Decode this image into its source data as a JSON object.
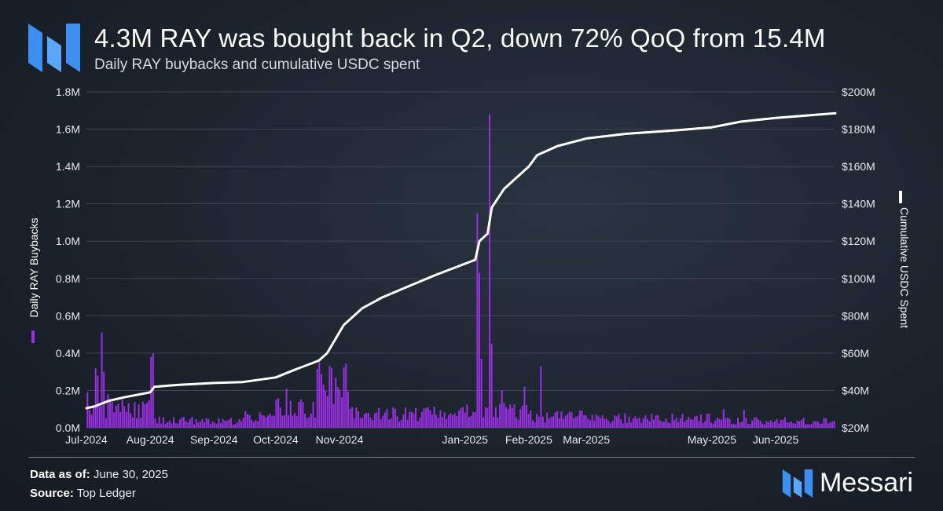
{
  "header": {
    "title": "4.3M RAY was bought back in Q2, down 72% QoQ from 15.4M",
    "subtitle": "Daily RAY buybacks and cumulative USDC spent",
    "logo_icon": "messari-logo-icon"
  },
  "footer": {
    "data_label": "Data as of:",
    "data_value": "June 30, 2025",
    "source_label": "Source:",
    "source_value": "Top Ledger",
    "brand": "Messari"
  },
  "colors": {
    "bars": "#9b2fe6",
    "line": "#ffffff",
    "accent": "#3d8ff2",
    "grid": "#3c4551"
  },
  "chart_data": {
    "type": "bar",
    "title": "4.3M RAY was bought back in Q2, down 72% QoQ from 15.4M",
    "subtitle": "Daily RAY buybacks and cumulative USDC spent",
    "x_axis": {
      "type": "date",
      "range": [
        "2024-07-01",
        "2025-06-30"
      ],
      "tick_dates": [
        "2024-07-01",
        "2024-08-01",
        "2024-09-01",
        "2024-10-01",
        "2024-11-01",
        "2025-01-01",
        "2025-02-01",
        "2025-03-01",
        "2025-05-01",
        "2025-06-01"
      ],
      "tick_labels": [
        "Jul-2024",
        "Aug-2024",
        "Sep-2024",
        "Oct-2024",
        "Nov-2024",
        "Jan-2025",
        "Feb-2025",
        "Mar-2025",
        "May-2025",
        "Jun-2025"
      ]
    },
    "y_left": {
      "label": "Daily RAY Buybacks",
      "range": [
        0,
        1800000
      ],
      "tick_values": [
        0,
        200000,
        400000,
        600000,
        800000,
        1000000,
        1200000,
        1400000,
        1600000,
        1800000
      ],
      "tick_labels": [
        "0.0M",
        "0.2M",
        "0.4M",
        "0.6M",
        "0.8M",
        "1.0M",
        "1.2M",
        "1.4M",
        "1.6M",
        "1.8M"
      ]
    },
    "y_right": {
      "label": "Cumulative USDC Spent",
      "range": [
        20000000,
        200000000
      ],
      "tick_values": [
        20000000,
        40000000,
        60000000,
        80000000,
        100000000,
        120000000,
        140000000,
        160000000,
        180000000,
        200000000
      ],
      "tick_labels": [
        "$20M",
        "$40M",
        "$60M",
        "$80M",
        "$100M",
        "$120M",
        "$140M",
        "$160M",
        "$180M",
        "$200M"
      ]
    },
    "grid": "horizontal",
    "legend": "axis-labels",
    "series": [
      {
        "name": "Daily RAY Buybacks",
        "type": "bar",
        "axis": "left",
        "unit": "RAY",
        "baseline_by_month": [
          {
            "from": "2024-07-01",
            "to": "2024-07-31",
            "value": 110000
          },
          {
            "from": "2024-08-01",
            "to": "2024-08-31",
            "value": 40000
          },
          {
            "from": "2024-09-01",
            "to": "2024-09-14",
            "value": 35000
          },
          {
            "from": "2024-09-15",
            "to": "2024-09-30",
            "value": 65000
          },
          {
            "from": "2024-10-01",
            "to": "2024-10-20",
            "value": 110000
          },
          {
            "from": "2024-10-21",
            "to": "2024-11-05",
            "value": 230000
          },
          {
            "from": "2024-11-06",
            "to": "2024-12-31",
            "value": 75000
          },
          {
            "from": "2025-01-01",
            "to": "2025-01-31",
            "value": 90000
          },
          {
            "from": "2025-02-01",
            "to": "2025-02-28",
            "value": 60000
          },
          {
            "from": "2025-03-01",
            "to": "2025-04-30",
            "value": 50000
          },
          {
            "from": "2025-05-01",
            "to": "2025-06-30",
            "value": 38000
          }
        ],
        "peaks": [
          {
            "date": "2024-07-01",
            "value": 190000
          },
          {
            "date": "2024-07-05",
            "value": 320000
          },
          {
            "date": "2024-07-06",
            "value": 280000
          },
          {
            "date": "2024-07-08",
            "value": 510000
          },
          {
            "date": "2024-07-09",
            "value": 300000
          },
          {
            "date": "2024-07-11",
            "value": 180000
          },
          {
            "date": "2024-08-01",
            "value": 380000
          },
          {
            "date": "2024-08-02",
            "value": 400000
          },
          {
            "date": "2024-10-06",
            "value": 210000
          },
          {
            "date": "2024-10-27",
            "value": 330000
          },
          {
            "date": "2024-10-28",
            "value": 320000
          },
          {
            "date": "2025-01-07",
            "value": 1150000
          },
          {
            "date": "2025-01-08",
            "value": 830000
          },
          {
            "date": "2025-01-09",
            "value": 370000
          },
          {
            "date": "2025-01-13",
            "value": 1680000
          },
          {
            "date": "2025-01-14",
            "value": 450000
          },
          {
            "date": "2025-01-19",
            "value": 200000
          },
          {
            "date": "2025-01-30",
            "value": 220000
          },
          {
            "date": "2025-02-07",
            "value": 330000
          },
          {
            "date": "2025-05-07",
            "value": 100000
          },
          {
            "date": "2025-05-17",
            "value": 95000
          }
        ]
      },
      {
        "name": "Cumulative USDC Spent",
        "type": "line",
        "axis": "right",
        "unit": "USD",
        "points": [
          {
            "date": "2024-07-01",
            "value": 30500000
          },
          {
            "date": "2024-07-05",
            "value": 31500000
          },
          {
            "date": "2024-07-12",
            "value": 34500000
          },
          {
            "date": "2024-07-20",
            "value": 36500000
          },
          {
            "date": "2024-08-01",
            "value": 39000000
          },
          {
            "date": "2024-08-03",
            "value": 42000000
          },
          {
            "date": "2024-08-15",
            "value": 43000000
          },
          {
            "date": "2024-09-01",
            "value": 44000000
          },
          {
            "date": "2024-09-15",
            "value": 44500000
          },
          {
            "date": "2024-10-01",
            "value": 47000000
          },
          {
            "date": "2024-10-10",
            "value": 51000000
          },
          {
            "date": "2024-10-22",
            "value": 56000000
          },
          {
            "date": "2024-10-26",
            "value": 60000000
          },
          {
            "date": "2024-11-03",
            "value": 75000000
          },
          {
            "date": "2024-11-12",
            "value": 84000000
          },
          {
            "date": "2024-11-22",
            "value": 90000000
          },
          {
            "date": "2024-12-05",
            "value": 96000000
          },
          {
            "date": "2024-12-18",
            "value": 102000000
          },
          {
            "date": "2025-01-06",
            "value": 110000000
          },
          {
            "date": "2025-01-08",
            "value": 120000000
          },
          {
            "date": "2025-01-12",
            "value": 124000000
          },
          {
            "date": "2025-01-14",
            "value": 138000000
          },
          {
            "date": "2025-01-20",
            "value": 148000000
          },
          {
            "date": "2025-02-01",
            "value": 160000000
          },
          {
            "date": "2025-02-05",
            "value": 166000000
          },
          {
            "date": "2025-02-15",
            "value": 171000000
          },
          {
            "date": "2025-03-01",
            "value": 175000000
          },
          {
            "date": "2025-03-20",
            "value": 177500000
          },
          {
            "date": "2025-04-15",
            "value": 179500000
          },
          {
            "date": "2025-05-01",
            "value": 181000000
          },
          {
            "date": "2025-05-15",
            "value": 184000000
          },
          {
            "date": "2025-06-01",
            "value": 186000000
          },
          {
            "date": "2025-06-30",
            "value": 188500000
          }
        ]
      }
    ]
  }
}
